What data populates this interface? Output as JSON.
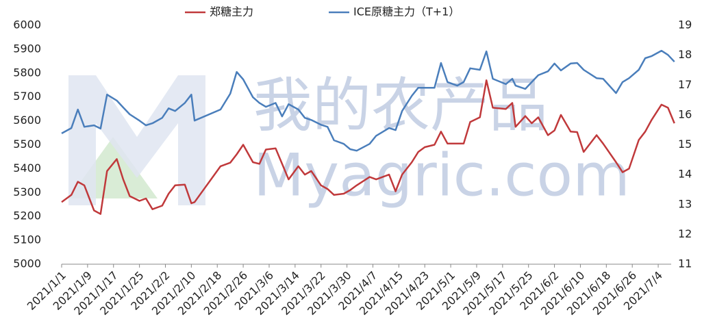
{
  "chart_data": {
    "type": "line",
    "watermark": [
      "我的农产品",
      "Myagric.com"
    ],
    "x": [
      "2021/1/1",
      "2021/1/4",
      "2021/1/6",
      "2021/1/8",
      "2021/1/11",
      "2021/1/13",
      "2021/1/15",
      "2021/1/18",
      "2021/1/20",
      "2021/1/22",
      "2021/1/25",
      "2021/1/27",
      "2021/1/29",
      "2021/2/1",
      "2021/2/3",
      "2021/2/5",
      "2021/2/8",
      "2021/2/10",
      "2021/2/11",
      "2021/2/19",
      "2021/2/22",
      "2021/2/24",
      "2021/2/26",
      "2021/3/1",
      "2021/3/3",
      "2021/3/5",
      "2021/3/8",
      "2021/3/10",
      "2021/3/12",
      "2021/3/15",
      "2021/3/17",
      "2021/3/19",
      "2021/3/22",
      "2021/3/24",
      "2021/3/26",
      "2021/3/29",
      "2021/3/31",
      "2021/4/2",
      "2021/4/6",
      "2021/4/8",
      "2021/4/12",
      "2021/4/14",
      "2021/4/16",
      "2021/4/19",
      "2021/4/21",
      "2021/4/23",
      "2021/4/26",
      "2021/4/28",
      "2021/4/30",
      "2021/5/3",
      "2021/5/5",
      "2021/5/7",
      "2021/5/10",
      "2021/5/12",
      "2021/5/14",
      "2021/5/18",
      "2021/5/20",
      "2021/5/21",
      "2021/5/24",
      "2021/5/26",
      "2021/5/28",
      "2021/5/31",
      "2021/6/2",
      "2021/6/4",
      "2021/6/7",
      "2021/6/9",
      "2021/6/11",
      "2021/6/15",
      "2021/6/17",
      "2021/6/21",
      "2021/6/23",
      "2021/6/25",
      "2021/6/28",
      "2021/6/30",
      "2021/7/2",
      "2021/7/5",
      "2021/7/7",
      "2021/7/9"
    ],
    "series": [
      {
        "name": "郑糖主力",
        "color": "#c0393b",
        "values": [
          5260,
          5290,
          5345,
          5330,
          5225,
          5210,
          5390,
          5440,
          5355,
          5285,
          5265,
          5275,
          5230,
          5245,
          5295,
          5330,
          5333,
          5255,
          5260,
          5410,
          5425,
          5460,
          5500,
          5427,
          5420,
          5480,
          5485,
          5420,
          5355,
          5410,
          5375,
          5390,
          5330,
          5315,
          5290,
          5295,
          5310,
          5330,
          5365,
          5355,
          5375,
          5305,
          5375,
          5427,
          5470,
          5490,
          5500,
          5555,
          5505,
          5505,
          5505,
          5595,
          5615,
          5770,
          5655,
          5650,
          5675,
          5575,
          5620,
          5590,
          5615,
          5540,
          5560,
          5625,
          5555,
          5553,
          5470,
          5540,
          5505,
          5427,
          5385,
          5400,
          5520,
          5555,
          5605,
          5668,
          5655,
          5590
        ]
      },
      {
        "name": "ICE原糖主力（T+1）",
        "color": "#4a7ebb",
        "axis": "y2",
        "values": [
          15.38,
          15.56,
          16.18,
          15.6,
          15.65,
          15.54,
          16.68,
          16.48,
          16.25,
          16.02,
          15.81,
          15.65,
          15.72,
          15.9,
          16.22,
          16.13,
          16.4,
          16.68,
          15.81,
          16.18,
          16.71,
          17.44,
          17.19,
          16.59,
          16.4,
          16.27,
          16.4,
          15.95,
          16.36,
          16.18,
          15.9,
          15.83,
          15.67,
          15.6,
          15.15,
          15.03,
          14.85,
          14.8,
          15.03,
          15.3,
          15.56,
          15.49,
          16.13,
          16.64,
          16.91,
          16.91,
          16.91,
          17.74,
          17.1,
          16.98,
          17.1,
          17.56,
          17.51,
          18.13,
          17.21,
          17.03,
          17.21,
          16.98,
          16.87,
          17.1,
          17.33,
          17.46,
          17.72,
          17.49,
          17.72,
          17.74,
          17.51,
          17.23,
          17.21,
          16.73,
          17.1,
          17.23,
          17.51,
          17.9,
          17.97,
          18.15,
          18.01,
          17.78
        ]
      }
    ],
    "xlim": [
      "2021/1/1",
      "2021/7/8"
    ],
    "xticks": [
      "2021/1/1",
      "2021/1/9",
      "2021/1/17",
      "2021/1/25",
      "2021/2/2",
      "2021/2/10",
      "2021/2/18",
      "2021/2/26",
      "2021/3/6",
      "2021/3/14",
      "2021/3/22",
      "2021/3/30",
      "2021/4/7",
      "2021/4/15",
      "2021/4/23",
      "2021/5/1",
      "2021/5/9",
      "2021/5/17",
      "2021/5/25",
      "2021/6/2",
      "2021/6/10",
      "2021/6/18",
      "2021/6/26",
      "2021/7/4"
    ],
    "ylim": [
      5000,
      6000
    ],
    "yticks": [
      5000,
      5100,
      5200,
      5300,
      5400,
      5500,
      5600,
      5700,
      5800,
      5900,
      6000
    ],
    "y2lim": [
      11,
      19
    ],
    "y2ticks": [
      11,
      12,
      13,
      14,
      15,
      16,
      17,
      18,
      19
    ],
    "legend": "top"
  }
}
